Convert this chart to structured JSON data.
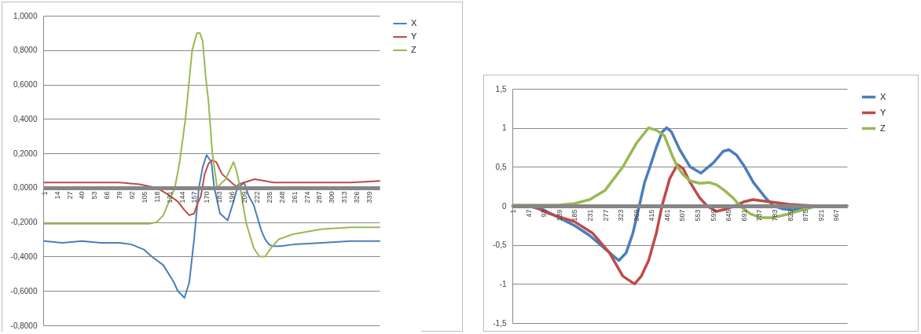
{
  "chart_data": [
    {
      "type": "line",
      "xlim": [
        0,
        350
      ],
      "xticks": [
        1,
        14,
        27,
        40,
        53,
        66,
        79,
        92,
        105,
        118,
        131,
        144,
        157,
        170,
        183,
        196,
        209,
        222,
        235,
        248,
        261,
        274,
        287,
        300,
        313,
        326,
        339
      ],
      "ylim": [
        -0.8,
        1.0
      ],
      "yticks": [
        {
          "value": -0.8,
          "label": "-0,8000"
        },
        {
          "value": -0.6,
          "label": "-0,6000"
        },
        {
          "value": -0.4,
          "label": "-0,4000"
        },
        {
          "value": -0.2,
          "label": "-0,2000"
        },
        {
          "value": 0,
          "label": "0,0000"
        },
        {
          "value": 0.2,
          "label": "0,2000"
        },
        {
          "value": 0.4,
          "label": "0,4000"
        },
        {
          "value": 0.6,
          "label": "0,6000"
        },
        {
          "value": 0.8,
          "label": "0,8000"
        },
        {
          "value": 1.0,
          "label": "1,0000"
        }
      ],
      "grid": "y",
      "legend": "right",
      "series": [
        {
          "name": "X",
          "color": "#4a7ebb",
          "x": [
            1,
            20,
            40,
            60,
            80,
            92,
            105,
            113,
            125,
            136,
            140,
            147,
            152,
            157,
            162,
            166,
            170,
            175,
            178,
            184,
            192,
            198,
            203,
            209,
            214,
            219,
            227,
            231,
            235,
            239,
            247,
            260,
            290,
            320,
            350
          ],
          "values": [
            -0.31,
            -0.32,
            -0.31,
            -0.32,
            -0.32,
            -0.33,
            -0.36,
            -0.4,
            -0.45,
            -0.55,
            -0.6,
            -0.64,
            -0.55,
            -0.3,
            0.0,
            0.12,
            0.19,
            0.15,
            0.0,
            -0.15,
            -0.19,
            -0.08,
            0.02,
            0.03,
            -0.05,
            -0.1,
            -0.25,
            -0.3,
            -0.33,
            -0.34,
            -0.34,
            -0.33,
            -0.32,
            -0.31,
            -0.31
          ]
        },
        {
          "name": "Y",
          "color": "#be4b48",
          "x": [
            1,
            20,
            40,
            60,
            80,
            100,
            118,
            130,
            140,
            147,
            152,
            157,
            160,
            164,
            168,
            172,
            176,
            180,
            186,
            192,
            198,
            203,
            209,
            220,
            240,
            280,
            320,
            350
          ],
          "values": [
            0.03,
            0.03,
            0.03,
            0.03,
            0.03,
            0.02,
            0.0,
            -0.04,
            -0.08,
            -0.13,
            -0.16,
            -0.15,
            -0.1,
            -0.05,
            0.08,
            0.14,
            0.16,
            0.15,
            0.08,
            0.05,
            0.02,
            0.0,
            0.03,
            0.05,
            0.03,
            0.03,
            0.03,
            0.04
          ]
        },
        {
          "name": "Z",
          "color": "#98b954",
          "x": [
            1,
            30,
            60,
            90,
            110,
            118,
            125,
            131,
            137,
            142,
            148,
            155,
            160,
            163,
            166,
            169,
            172,
            176,
            181,
            186,
            190,
            194,
            198,
            201,
            205,
            211,
            219,
            225,
            231,
            237,
            245,
            260,
            290,
            320,
            350
          ],
          "values": [
            -0.21,
            -0.21,
            -0.21,
            -0.21,
            -0.21,
            -0.2,
            -0.16,
            -0.08,
            0.0,
            0.15,
            0.4,
            0.8,
            0.9,
            0.9,
            0.85,
            0.65,
            0.5,
            0.2,
            0.0,
            0.03,
            0.05,
            0.1,
            0.15,
            0.1,
            0.0,
            -0.2,
            -0.35,
            -0.4,
            -0.4,
            -0.35,
            -0.3,
            -0.27,
            -0.24,
            -0.23,
            -0.23
          ]
        }
      ]
    },
    {
      "type": "line",
      "xlim": [
        0,
        1000
      ],
      "xticks": [
        1,
        47,
        93,
        139,
        185,
        231,
        277,
        323,
        369,
        415,
        461,
        507,
        553,
        599,
        645,
        691,
        737,
        783,
        829,
        875,
        921,
        967
      ],
      "ylim": [
        -1.5,
        1.5
      ],
      "yticks": [
        {
          "value": -1.5,
          "label": "-1,5"
        },
        -1,
        {
          "value": -0.5,
          "label": "-0,5"
        },
        0,
        {
          "value": 0.5,
          "label": "0,5"
        },
        1,
        {
          "value": 1.5,
          "label": "1,5"
        }
      ],
      "grid": "y",
      "legend": "right",
      "series": [
        {
          "name": "X",
          "color": "#4a7ebb",
          "x": [
            1,
            47,
            93,
            139,
            185,
            231,
            277,
            318,
            340,
            360,
            379,
            395,
            411,
            430,
            448,
            461,
            475,
            500,
            531,
            563,
            600,
            630,
            647,
            670,
            694,
            720,
            757,
            780,
            810,
            838,
            873,
            908
          ],
          "values": [
            0,
            0,
            -0.05,
            -0.15,
            -0.25,
            -0.38,
            -0.55,
            -0.7,
            -0.6,
            -0.35,
            0,
            0.3,
            0.5,
            0.75,
            0.95,
            1.0,
            0.95,
            0.72,
            0.5,
            0.42,
            0.55,
            0.7,
            0.72,
            0.65,
            0.5,
            0.3,
            0.1,
            0,
            -0.04,
            -0.05,
            -0.04,
            0
          ]
        },
        {
          "name": "Y",
          "color": "#be4b48",
          "x": [
            1,
            60,
            110,
            185,
            240,
            290,
            330,
            365,
            385,
            407,
            430,
            447,
            470,
            493,
            510,
            531,
            560,
            582,
            609,
            640,
            664,
            690,
            718,
            773,
            827,
            908,
            1000
          ],
          "values": [
            0,
            0,
            -0.1,
            -0.2,
            -0.35,
            -0.6,
            -0.9,
            -1.0,
            -0.9,
            -0.7,
            -0.35,
            0,
            0.35,
            0.53,
            0.48,
            0.3,
            0.1,
            0,
            -0.07,
            -0.04,
            0,
            0.05,
            0.08,
            0.05,
            0.02,
            0,
            0
          ]
        },
        {
          "name": "Z",
          "color": "#98b954",
          "x": [
            1,
            139,
            185,
            231,
            277,
            330,
            370,
            407,
            430,
            454,
            477,
            493,
            510,
            531,
            560,
            587,
            610,
            633,
            660,
            680,
            710,
            741,
            780,
            827,
            908,
            1000
          ],
          "values": [
            0.01,
            0.01,
            0.03,
            0.08,
            0.2,
            0.5,
            0.8,
            1.0,
            0.97,
            0.9,
            0.65,
            0.5,
            0.4,
            0.32,
            0.29,
            0.3,
            0.27,
            0.2,
            0.1,
            0,
            -0.1,
            -0.15,
            -0.15,
            -0.1,
            0,
            0
          ]
        }
      ]
    }
  ]
}
